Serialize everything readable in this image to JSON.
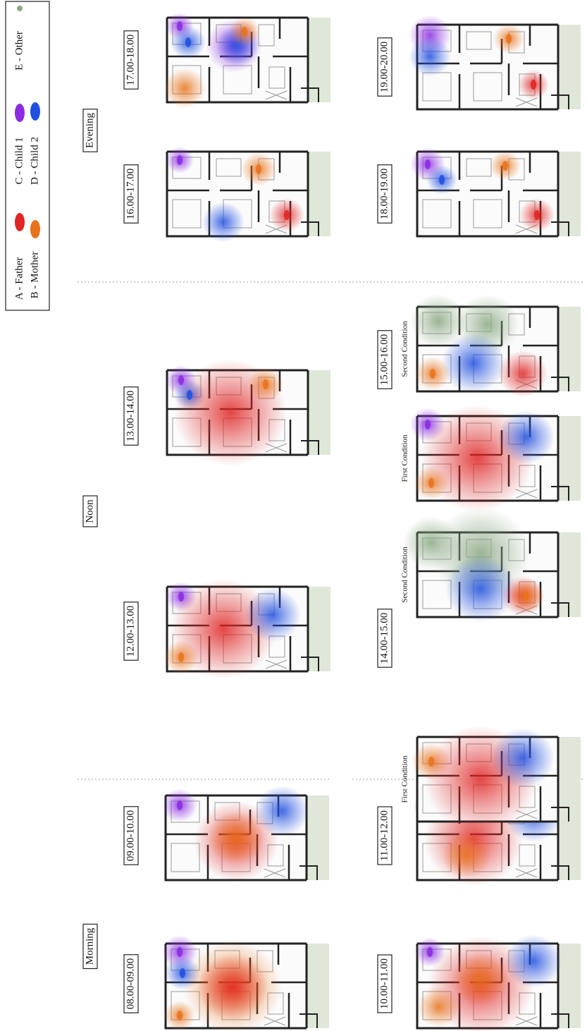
{
  "legend": {
    "items": [
      {
        "label": "A - Father",
        "color": "#e02525"
      },
      {
        "label": "B - Mother",
        "color": "#e8731c"
      },
      {
        "label": "C - Child 1",
        "color": "#8a2be2"
      },
      {
        "label": "D - Child 2",
        "color": "#2050e0"
      },
      {
        "label": "E - Other",
        "color": "#8aa882"
      }
    ]
  },
  "sections": [
    "Morning",
    "Noon",
    "Evening"
  ],
  "panels": [
    {
      "time": "08.00-09.00"
    },
    {
      "time": "09.00-10.00"
    },
    {
      "time": "10.00-11.00"
    },
    {
      "time": "11.00-12.00"
    },
    {
      "time": "12.00-13.00"
    },
    {
      "time": "13.00-14.00"
    },
    {
      "time": "14.00-15.00",
      "conditions": [
        "First Condition",
        "Second Condition"
      ]
    },
    {
      "time": "15.00-16.00",
      "conditions": [
        "First Condition",
        "Second Condition"
      ]
    },
    {
      "time": "16.00-17.00"
    },
    {
      "time": "17.00-18.00"
    },
    {
      "time": "18.00-19.00"
    },
    {
      "time": "19.00-20.00"
    }
  ]
}
